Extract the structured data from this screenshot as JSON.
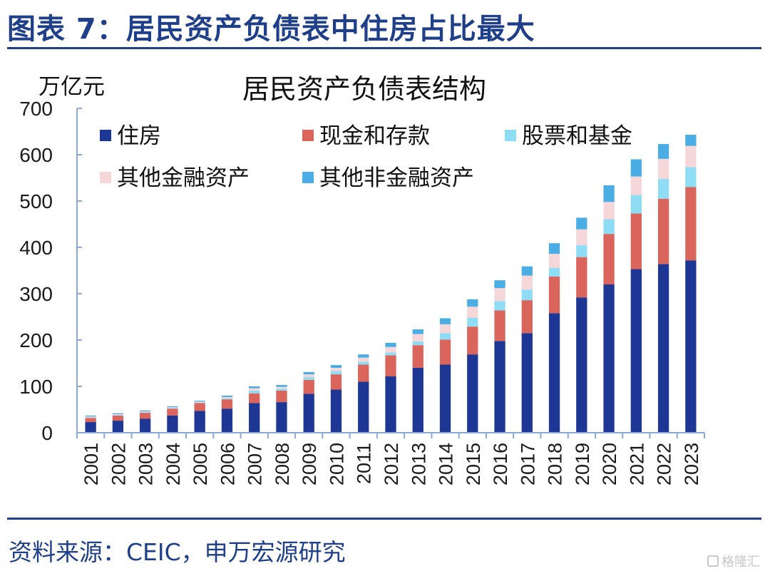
{
  "figure_title": "图表 7：居民资产负债表中住房占比最大",
  "source": "资料来源：CEIC，申万宏源研究",
  "watermark": "格隆汇",
  "chart_data": {
    "type": "bar",
    "stacked": true,
    "title": "居民资产负债表结构",
    "ylabel": "万亿元",
    "xlabel": "",
    "ylim": [
      0,
      700
    ],
    "yticks": [
      0,
      100,
      200,
      300,
      400,
      500,
      600,
      700
    ],
    "grid": false,
    "legend_position": "top-left",
    "categories": [
      "2001",
      "2002",
      "2003",
      "2004",
      "2005",
      "2006",
      "2007",
      "2008",
      "2009",
      "2010",
      "2011",
      "2012",
      "2013",
      "2014",
      "2015",
      "2016",
      "2017",
      "2018",
      "2019",
      "2020",
      "2021",
      "2022",
      "2023"
    ],
    "series": [
      {
        "name": "住房",
        "color": "#1f3794",
        "values": [
          23,
          26,
          30,
          37,
          47,
          52,
          64,
          66,
          84,
          93,
          110,
          122,
          140,
          147,
          169,
          198,
          215,
          258,
          292,
          320,
          353,
          364,
          372
        ]
      },
      {
        "name": "现金和存款",
        "color": "#d9655c",
        "values": [
          9,
          11,
          13,
          15,
          17,
          20,
          21,
          25,
          30,
          33,
          37,
          45,
          49,
          54,
          60,
          66,
          71,
          79,
          87,
          109,
          120,
          141,
          158
        ]
      },
      {
        "name": "股票和基金",
        "color": "#8fdcf5",
        "values": [
          1,
          1,
          1,
          1,
          1,
          2,
          6,
          4,
          6,
          7,
          6,
          6,
          8,
          14,
          19,
          20,
          23,
          19,
          26,
          32,
          40,
          43,
          43
        ]
      },
      {
        "name": "其他金融资产",
        "color": "#f5d6d9",
        "values": [
          2,
          2,
          2,
          2,
          2,
          3,
          5,
          4,
          6,
          7,
          9,
          12,
          16,
          19,
          24,
          28,
          30,
          30,
          34,
          37,
          40,
          43,
          46
        ]
      },
      {
        "name": "其他非金融资产",
        "color": "#4aaee4",
        "values": [
          2,
          2,
          2,
          2,
          2,
          3,
          4,
          4,
          5,
          6,
          7,
          9,
          10,
          13,
          16,
          17,
          20,
          23,
          25,
          36,
          37,
          32,
          24
        ]
      }
    ]
  }
}
